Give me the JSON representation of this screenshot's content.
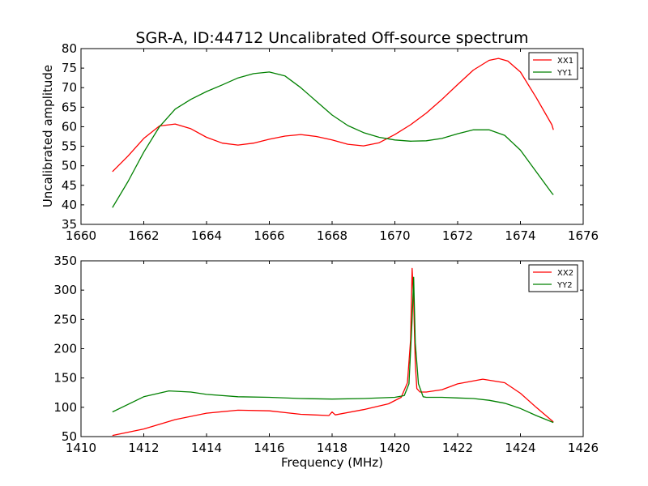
{
  "chart_data": [
    {
      "type": "line",
      "title": "SGR-A, ID:44712 Uncalibrated Off-source spectrum",
      "xlabel": "",
      "ylabel": "Uncalibrated amplitude",
      "xlim": [
        1660,
        1676
      ],
      "ylim": [
        35,
        80
      ],
      "xticks": [
        "1660",
        "1662",
        "1664",
        "1666",
        "1668",
        "1670",
        "1672",
        "1674",
        "1676"
      ],
      "yticks": [
        "35",
        "40",
        "45",
        "50",
        "55",
        "60",
        "65",
        "70",
        "75",
        "80"
      ],
      "legend_position": "top-right",
      "grid": false,
      "series": [
        {
          "name": "XX1",
          "color": "#ff0000",
          "x": [
            1661.0,
            1661.5,
            1662.0,
            1662.5,
            1663.0,
            1663.5,
            1664.0,
            1664.5,
            1665.0,
            1665.5,
            1666.0,
            1666.5,
            1667.0,
            1667.5,
            1668.0,
            1668.5,
            1669.0,
            1669.5,
            1670.0,
            1670.5,
            1671.0,
            1671.5,
            1672.0,
            1672.5,
            1673.0,
            1673.3,
            1673.6,
            1674.0,
            1674.5,
            1675.0,
            1675.05
          ],
          "y": [
            48.5,
            52.5,
            57.0,
            60.2,
            60.7,
            59.5,
            57.3,
            55.8,
            55.3,
            55.8,
            56.8,
            57.6,
            58.0,
            57.5,
            56.6,
            55.5,
            55.1,
            55.9,
            58.0,
            60.5,
            63.5,
            67.0,
            70.8,
            74.5,
            77.0,
            77.5,
            76.8,
            74.0,
            67.5,
            60.5,
            59.2
          ]
        },
        {
          "name": "YY1",
          "color": "#008000",
          "x": [
            1661.0,
            1661.5,
            1662.0,
            1662.5,
            1663.0,
            1663.5,
            1664.0,
            1664.5,
            1665.0,
            1665.5,
            1666.0,
            1666.5,
            1667.0,
            1667.5,
            1668.0,
            1668.5,
            1669.0,
            1669.5,
            1670.0,
            1670.5,
            1671.0,
            1671.5,
            1672.0,
            1672.5,
            1673.0,
            1673.5,
            1674.0,
            1674.5,
            1675.0,
            1675.05
          ],
          "y": [
            39.3,
            46.0,
            53.5,
            60.0,
            64.5,
            67.0,
            69.0,
            70.7,
            72.5,
            73.6,
            74.0,
            73.0,
            70.0,
            66.5,
            63.0,
            60.3,
            58.5,
            57.3,
            56.6,
            56.3,
            56.4,
            57.0,
            58.2,
            59.2,
            59.2,
            57.8,
            54.0,
            48.5,
            43.0,
            42.6
          ]
        }
      ]
    },
    {
      "type": "line",
      "title": "",
      "xlabel": "Frequency (MHz)",
      "ylabel": "",
      "xlim": [
        1410,
        1426
      ],
      "ylim": [
        50,
        350
      ],
      "xticks": [
        "1410",
        "1412",
        "1414",
        "1416",
        "1418",
        "1420",
        "1422",
        "1424",
        "1426"
      ],
      "yticks": [
        "50",
        "100",
        "150",
        "200",
        "250",
        "300",
        "350"
      ],
      "legend_position": "top-right",
      "grid": false,
      "series": [
        {
          "name": "XX2",
          "color": "#ff0000",
          "x": [
            1411.0,
            1412.0,
            1413.0,
            1414.0,
            1415.0,
            1416.0,
            1417.0,
            1417.9,
            1418.0,
            1418.1,
            1419.0,
            1419.8,
            1420.2,
            1420.4,
            1420.5,
            1420.55,
            1420.6,
            1420.65,
            1420.7,
            1420.8,
            1421.0,
            1421.5,
            1422.0,
            1422.8,
            1423.5,
            1424.0,
            1424.5,
            1425.05
          ],
          "y": [
            52,
            63,
            79,
            90,
            95,
            94,
            88,
            86,
            92,
            87,
            96,
            106,
            117,
            142,
            215,
            337,
            280,
            175,
            132,
            126,
            126,
            130,
            140,
            148,
            142,
            124,
            100,
            75
          ]
        },
        {
          "name": "YY2",
          "color": "#008000",
          "x": [
            1411.0,
            1412.0,
            1412.8,
            1413.5,
            1414.0,
            1415.0,
            1416.0,
            1417.0,
            1418.0,
            1419.0,
            1420.0,
            1420.3,
            1420.45,
            1420.55,
            1420.6,
            1420.65,
            1420.75,
            1420.9,
            1421.0,
            1421.5,
            1422.0,
            1422.5,
            1423.0,
            1423.5,
            1424.0,
            1424.5,
            1425.05
          ],
          "y": [
            92,
            118,
            128,
            126,
            122,
            118,
            117,
            115,
            114,
            115,
            117,
            120,
            140,
            250,
            322,
            210,
            140,
            118,
            117,
            117,
            116,
            115,
            112,
            107,
            98,
            86,
            74
          ]
        }
      ]
    }
  ]
}
